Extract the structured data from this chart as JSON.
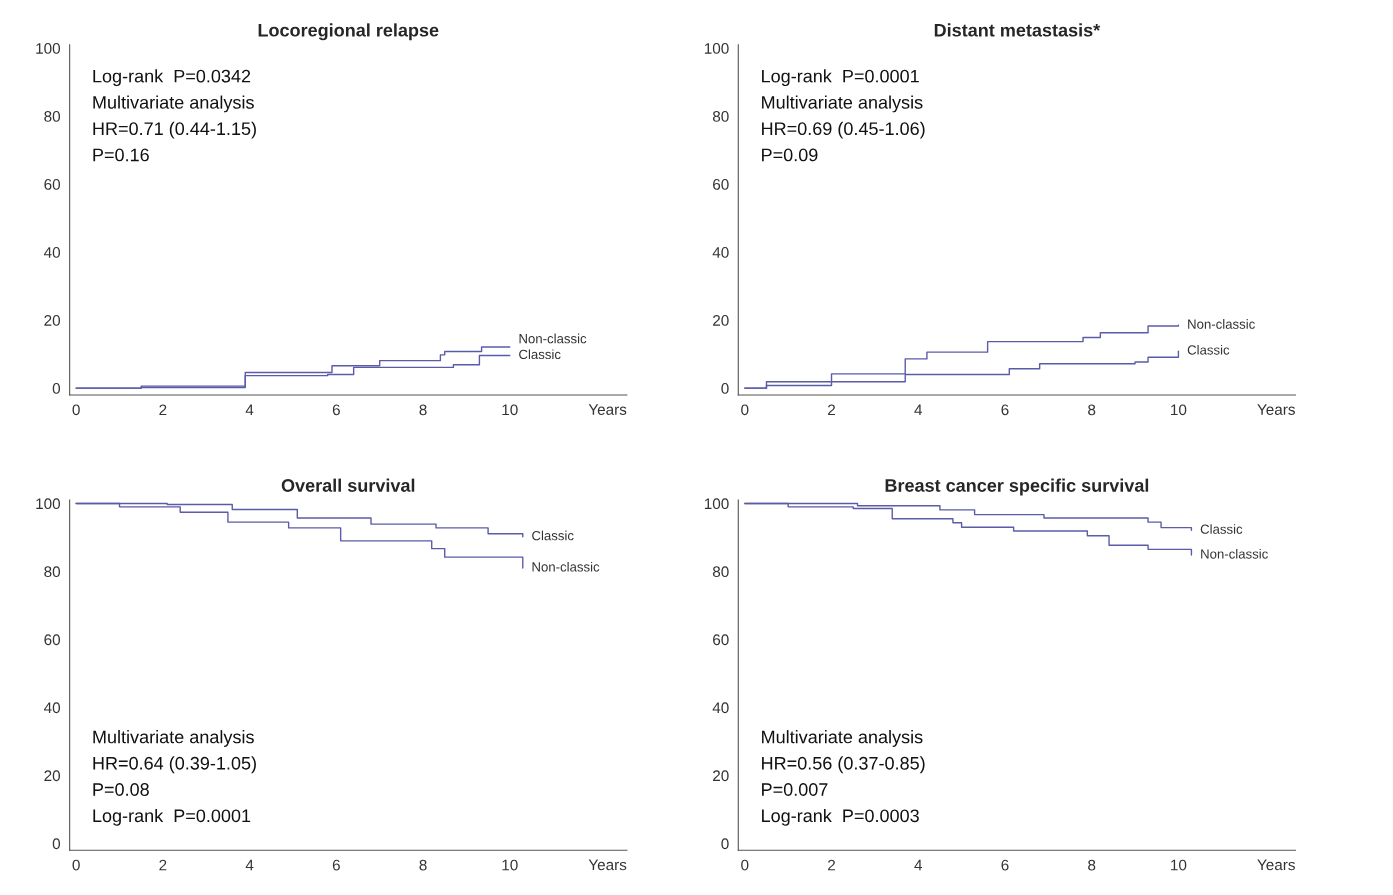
{
  "chart_data": [
    {
      "type": "step",
      "title": "Locoregional relapse",
      "xlabel": "Years",
      "xlim": [
        -0.15,
        12.7
      ],
      "ylim": [
        -2,
        101
      ],
      "xticks": [
        0,
        2,
        4,
        6,
        8,
        10
      ],
      "yticks": [
        0,
        20,
        40,
        60,
        80,
        100
      ],
      "grid": false,
      "annotations": [
        "Log-rank  P=0.0342",
        "Multivariate analysis",
        "HR=0.71 (0.44-1.15)",
        "P=0.16"
      ],
      "series": [
        {
          "name": "Non-classic",
          "color": "#5b5ba8",
          "x": [
            0,
            1.5,
            3.9,
            5.9,
            7.0,
            8.4,
            8.5,
            9.35,
            10
          ],
          "values": [
            0,
            0.6,
            4.6,
            6.6,
            8.1,
            9.8,
            10.8,
            12.1,
            12.1
          ]
        },
        {
          "name": "Classic",
          "color": "#5b5ba8",
          "x": [
            0,
            1.5,
            3.9,
            5.8,
            6.4,
            8.7,
            9.3,
            10
          ],
          "values": [
            0,
            0.2,
            3.7,
            4.0,
            6.1,
            6.9,
            9.6,
            9.6
          ]
        }
      ]
    },
    {
      "type": "step",
      "title": "Distant metastasis*",
      "xlabel": "Years",
      "xlim": [
        -0.15,
        12.7
      ],
      "ylim": [
        -2,
        101
      ],
      "xticks": [
        0,
        2,
        4,
        6,
        8,
        10
      ],
      "yticks": [
        0,
        20,
        40,
        60,
        80,
        100
      ],
      "grid": false,
      "annotations": [
        "Log-rank  P=0.0001",
        "Multivariate analysis",
        "HR=0.69 (0.45-1.06)",
        "P=0.09"
      ],
      "series": [
        {
          "name": "Non-classic",
          "color": "#5b5ba8",
          "x": [
            0,
            0.5,
            2.0,
            3.7,
            4.2,
            5.6,
            7.8,
            8.2,
            9.3,
            10
          ],
          "values": [
            0,
            1.9,
            4.2,
            8.6,
            10.6,
            13.7,
            14.9,
            16.3,
            18.3,
            18.5
          ]
        },
        {
          "name": "Classic",
          "color": "#5b5ba8",
          "x": [
            0,
            0.5,
            2.0,
            3.7,
            6.1,
            6.8,
            9.0,
            9.3,
            10
          ],
          "values": [
            0,
            0.8,
            1.9,
            4.0,
            5.7,
            7.2,
            7.7,
            9.1,
            10.9
          ]
        }
      ]
    },
    {
      "type": "step",
      "title": "Overall survival",
      "xlabel": "Years",
      "xlim": [
        -0.15,
        12.7
      ],
      "ylim": [
        -2,
        101
      ],
      "xticks": [
        0,
        2,
        4,
        6,
        8,
        10
      ],
      "yticks": [
        0,
        20,
        40,
        60,
        80,
        100
      ],
      "grid": false,
      "annotations": [
        "Multivariate analysis",
        "HR=0.64 (0.39-1.05)",
        "P=0.08",
        "Log-rank  P=0.0001"
      ],
      "series": [
        {
          "name": "Classic",
          "color": "#5b5ba8",
          "x": [
            0,
            2.1,
            3.6,
            5.1,
            6.8,
            8.3,
            9.5,
            10.3
          ],
          "values": [
            100,
            99.7,
            98.2,
            95.7,
            93.9,
            92.8,
            91.1,
            90.2
          ]
        },
        {
          "name": "Non-classic",
          "color": "#5b5ba8",
          "x": [
            0,
            1.0,
            2.4,
            3.5,
            4.9,
            6.1,
            8.2,
            8.5,
            10.3
          ],
          "values": [
            100,
            99.0,
            97.4,
            94.5,
            92.8,
            89.0,
            86.7,
            84.2,
            81.0
          ]
        }
      ]
    },
    {
      "type": "step",
      "title": "Breast cancer specific survival",
      "xlabel": "Years",
      "xlim": [
        -0.15,
        12.7
      ],
      "ylim": [
        -2,
        101
      ],
      "xticks": [
        0,
        2,
        4,
        6,
        8,
        10
      ],
      "yticks": [
        0,
        20,
        40,
        60,
        80,
        100
      ],
      "grid": false,
      "annotations": [
        "Multivariate analysis",
        "HR=0.56 (0.37-0.85)",
        "P=0.007",
        "Log-rank  P=0.0003"
      ],
      "series": [
        {
          "name": "Classic",
          "color": "#5b5ba8",
          "x": [
            0,
            2.6,
            4.5,
            5.3,
            6.9,
            9.3,
            9.6,
            10.3
          ],
          "values": [
            100,
            99.3,
            98.1,
            96.7,
            95.7,
            94.5,
            92.9,
            92.1
          ]
        },
        {
          "name": "Non-classic",
          "color": "#5b5ba8",
          "x": [
            0,
            1.0,
            2.5,
            3.4,
            4.8,
            5.0,
            6.2,
            7.9,
            8.4,
            9.3,
            10.3
          ],
          "values": [
            100,
            99.0,
            98.5,
            95.5,
            94.3,
            93.0,
            91.9,
            90.5,
            87.7,
            86.5,
            84.8
          ]
        }
      ]
    }
  ]
}
